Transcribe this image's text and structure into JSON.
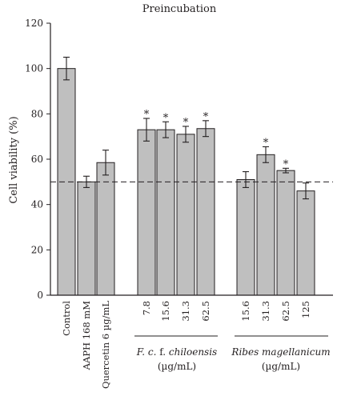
{
  "chart_data": {
    "type": "bar",
    "title": "Preincubation",
    "ylabel": "Cell viability (%)",
    "xlabel": "",
    "ylim": [
      0,
      120
    ],
    "yticks": [
      0,
      20,
      40,
      60,
      80,
      100,
      120
    ],
    "reference_line": 50,
    "categories": [
      "Control",
      "AAPH 168 mM",
      "Quercetin 6 µg/mL",
      "7.8",
      "15.6",
      "31.3",
      "62.5",
      "15.6",
      "31.3",
      "62.5",
      "125"
    ],
    "values": [
      100,
      50,
      58.5,
      73,
      73,
      71,
      73.5,
      51,
      62,
      55,
      46
    ],
    "errors": [
      5,
      2.5,
      5.5,
      5,
      3.5,
      3.5,
      3.5,
      3.5,
      3.5,
      1,
      3.5
    ],
    "significant": [
      false,
      false,
      false,
      true,
      true,
      true,
      true,
      false,
      true,
      true,
      false
    ],
    "significance_marker": "*",
    "groups": [
      {
        "line1_italic": "F. c.",
        "line1_regular": " f. ",
        "line1_italic2": "chiloensis",
        "line2": "(µg/mL)"
      },
      {
        "line1_italic": "Ribes magellanicum",
        "line1_regular": "",
        "line1_italic2": "",
        "line2": "(µg/mL)"
      }
    ]
  }
}
